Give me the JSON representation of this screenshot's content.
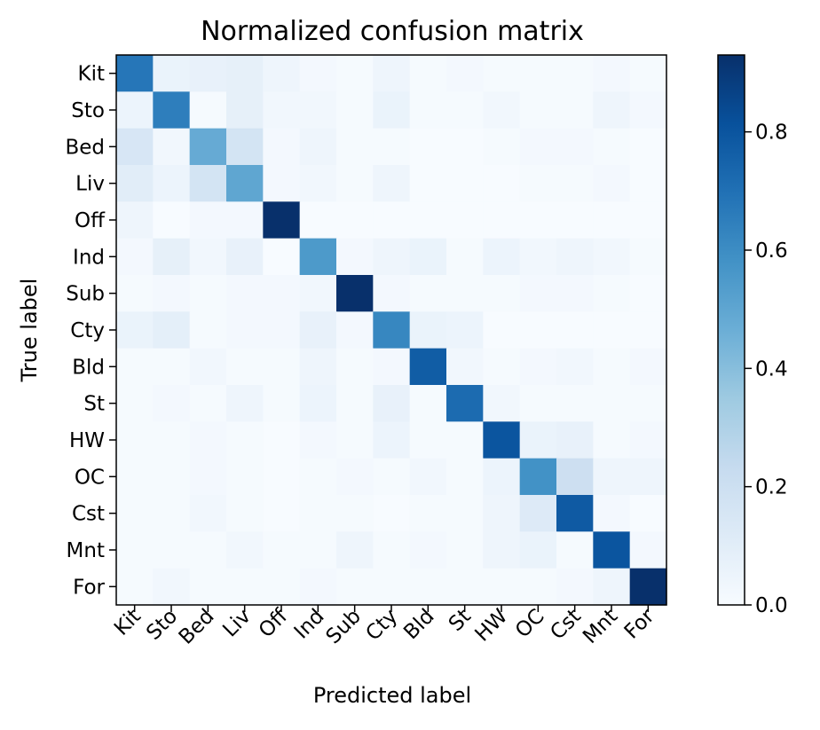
{
  "chart_data": {
    "type": "heatmap",
    "title": "Normalized confusion matrix",
    "xlabel": "Predicted label",
    "ylabel": "True label",
    "categories": [
      "Kit",
      "Sto",
      "Bed",
      "Liv",
      "Off",
      "Ind",
      "Sub",
      "Cty",
      "Bld",
      "St",
      "HW",
      "OC",
      "Cst",
      "Mnt",
      "For"
    ],
    "matrix": [
      [
        0.68,
        0.06,
        0.07,
        0.08,
        0.04,
        0.02,
        0.01,
        0.04,
        0.01,
        0.02,
        0.01,
        0.01,
        0.01,
        0.02,
        0.01
      ],
      [
        0.05,
        0.65,
        0.01,
        0.08,
        0.03,
        0.03,
        0.01,
        0.06,
        0.01,
        0.01,
        0.03,
        0.01,
        0.01,
        0.04,
        0.02
      ],
      [
        0.15,
        0.03,
        0.48,
        0.17,
        0.02,
        0.04,
        0.01,
        0.01,
        0.0,
        0.0,
        0.01,
        0.02,
        0.02,
        0.01,
        0.0
      ],
      [
        0.1,
        0.05,
        0.17,
        0.5,
        0.02,
        0.03,
        0.01,
        0.04,
        0.0,
        0.0,
        0.0,
        0.01,
        0.01,
        0.02,
        0.0
      ],
      [
        0.04,
        0.0,
        0.02,
        0.02,
        0.93,
        0.0,
        0.0,
        0.0,
        0.0,
        0.0,
        0.0,
        0.0,
        0.0,
        0.0,
        0.0
      ],
      [
        0.02,
        0.08,
        0.03,
        0.07,
        0.0,
        0.55,
        0.02,
        0.04,
        0.06,
        0.01,
        0.05,
        0.03,
        0.04,
        0.03,
        0.01
      ],
      [
        0.01,
        0.02,
        0.01,
        0.02,
        0.02,
        0.03,
        0.93,
        0.02,
        0.01,
        0.01,
        0.01,
        0.02,
        0.02,
        0.01,
        0.0
      ],
      [
        0.06,
        0.09,
        0.01,
        0.02,
        0.02,
        0.07,
        0.02,
        0.62,
        0.06,
        0.05,
        0.0,
        0.0,
        0.0,
        0.0,
        0.0
      ],
      [
        0.01,
        0.01,
        0.03,
        0.01,
        0.01,
        0.04,
        0.01,
        0.02,
        0.77,
        0.03,
        0.01,
        0.02,
        0.03,
        0.01,
        0.02
      ],
      [
        0.01,
        0.02,
        0.01,
        0.04,
        0.01,
        0.05,
        0.01,
        0.07,
        0.01,
        0.72,
        0.03,
        0.01,
        0.01,
        0.01,
        0.01
      ],
      [
        0.01,
        0.01,
        0.02,
        0.01,
        0.0,
        0.02,
        0.01,
        0.05,
        0.01,
        0.01,
        0.8,
        0.06,
        0.07,
        0.01,
        0.02
      ],
      [
        0.01,
        0.01,
        0.02,
        0.01,
        0.0,
        0.01,
        0.02,
        0.01,
        0.03,
        0.01,
        0.05,
        0.58,
        0.2,
        0.04,
        0.04
      ],
      [
        0.01,
        0.01,
        0.03,
        0.01,
        0.0,
        0.01,
        0.01,
        0.0,
        0.01,
        0.01,
        0.04,
        0.12,
        0.78,
        0.02,
        0.0
      ],
      [
        0.01,
        0.01,
        0.01,
        0.03,
        0.01,
        0.01,
        0.04,
        0.01,
        0.02,
        0.01,
        0.04,
        0.06,
        0.01,
        0.8,
        0.02
      ],
      [
        0.01,
        0.03,
        0.01,
        0.01,
        0.01,
        0.02,
        0.01,
        0.01,
        0.01,
        0.01,
        0.01,
        0.01,
        0.02,
        0.04,
        0.93
      ]
    ],
    "colorbar": {
      "min": 0.0,
      "max": 0.93,
      "ticks": [
        "0.0",
        "0.2",
        "0.4",
        "0.6",
        "0.8"
      ],
      "colormap": "Blues"
    },
    "grid": false,
    "legend": "colorbar-right"
  }
}
